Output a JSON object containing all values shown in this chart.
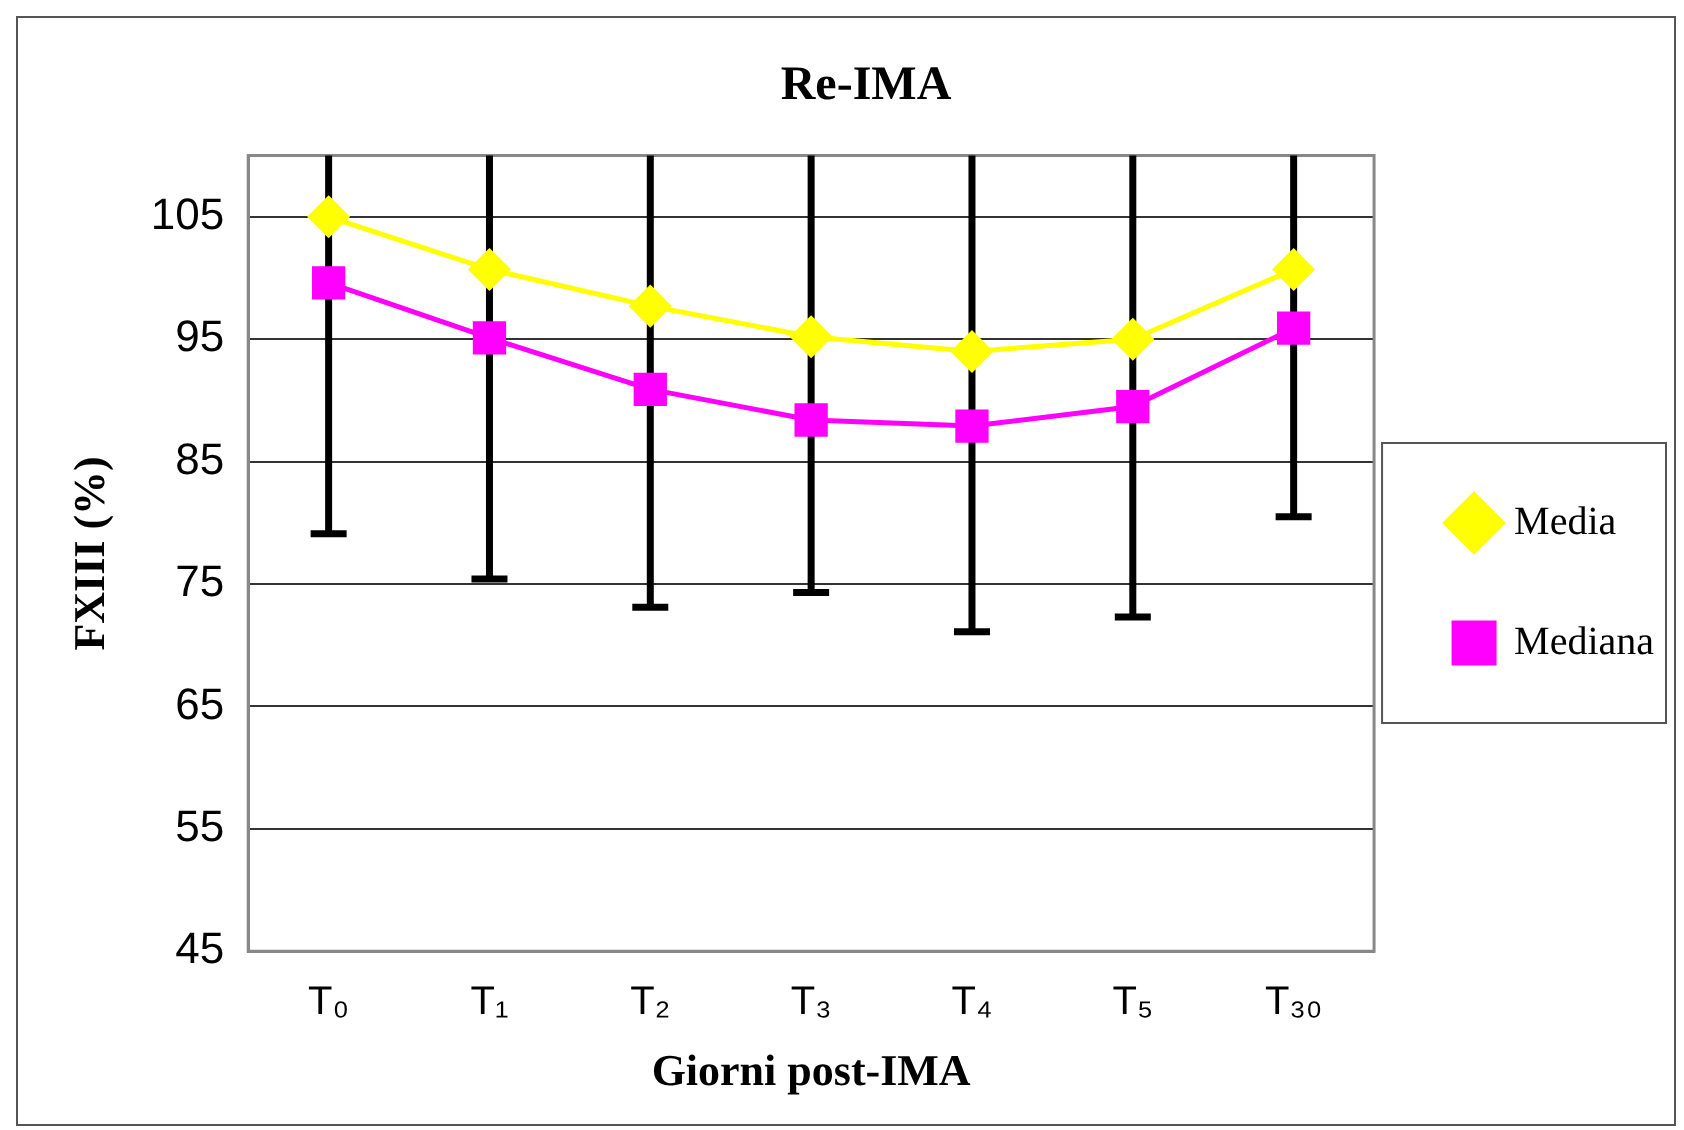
{
  "chart_data": {
    "type": "line",
    "title": "Re-IMA",
    "xlabel": "Giorni post-IMA",
    "ylabel": "FXIII (%)",
    "categories": [
      "T₀",
      "T₁",
      "T₂",
      "T₃",
      "T₄",
      "T₅",
      "T₃₀"
    ],
    "series": [
      {
        "name": "Media",
        "color": "#ffff00",
        "marker": "diamond",
        "values": [
          105,
          100.7,
          97.7,
          95.2,
          94.0,
          95.0,
          100.7
        ],
        "errors": [
          [
            79.1,
            110
          ],
          [
            75.4,
            110
          ],
          [
            73.1,
            110
          ],
          [
            74.3,
            110
          ],
          [
            71.1,
            110
          ],
          [
            72.3,
            110
          ],
          [
            80.5,
            110
          ]
        ]
      },
      {
        "name": "Mediana",
        "color": "#ff00ff",
        "marker": "square",
        "values": [
          99.6,
          95.1,
          90.9,
          88.4,
          87.9,
          89.5,
          95.9
        ]
      }
    ],
    "ylim": [
      45,
      110
    ],
    "yticks": [
      45,
      55,
      65,
      75,
      85,
      95,
      105
    ],
    "grid": "y",
    "legend": "right",
    "line_style": "solid"
  }
}
